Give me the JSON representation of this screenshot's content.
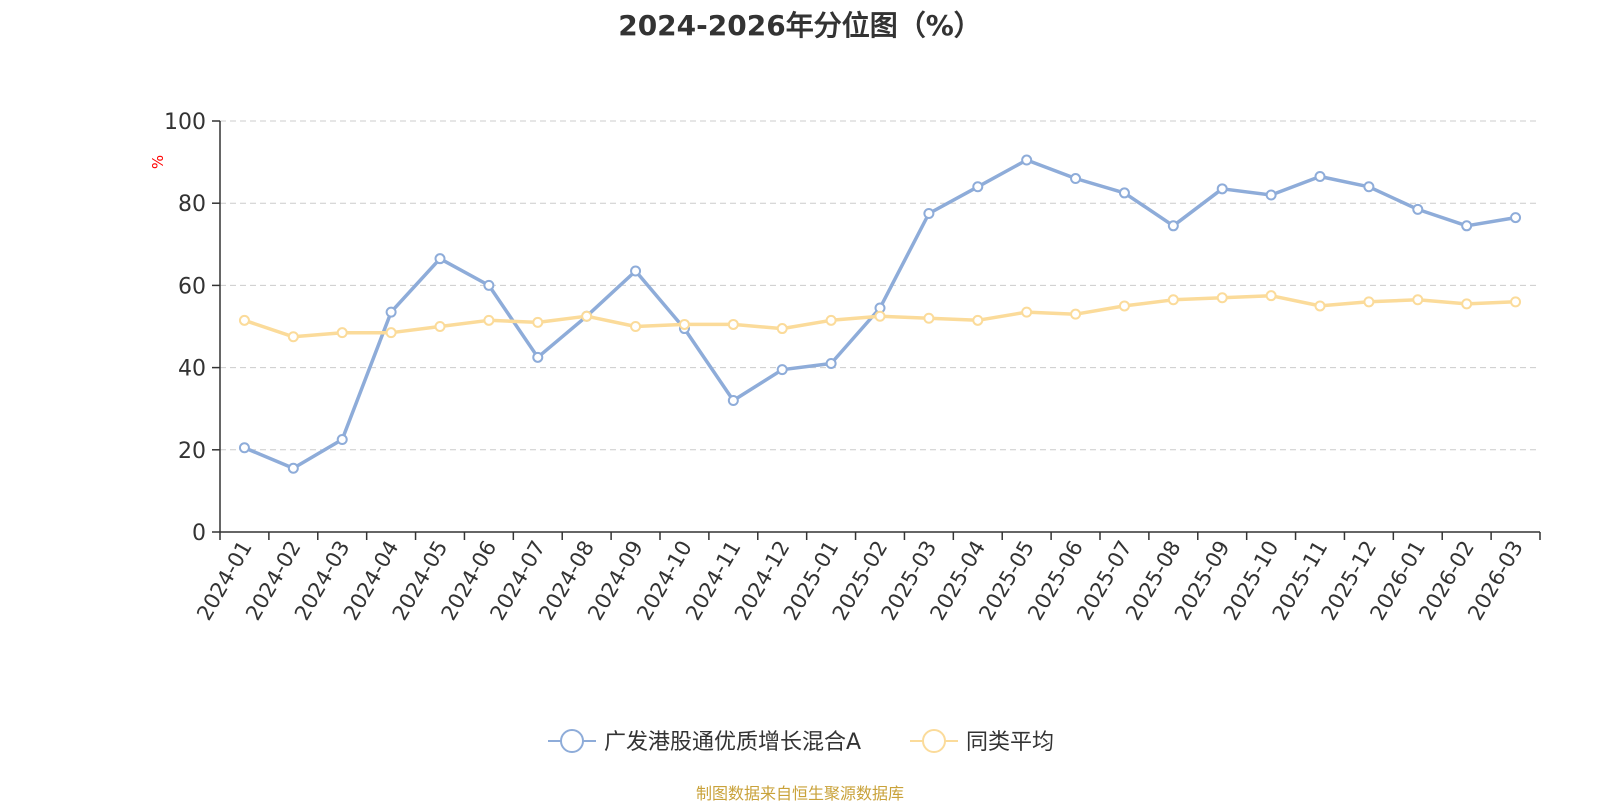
{
  "title": "2024-2026年分位图（%）",
  "source": "制图数据来自恒生聚源数据库",
  "y_unit": "%",
  "chart_data": {
    "type": "line",
    "title": "2024-2026年分位图（%）",
    "xlabel": "",
    "ylabel": "%",
    "ylim": [
      0,
      100
    ],
    "yticks": [
      0,
      20,
      40,
      60,
      80,
      100
    ],
    "grid": true,
    "legend_position": "bottom",
    "categories": [
      "2024-01",
      "2024-02",
      "2024-03",
      "2024-04",
      "2024-05",
      "2024-06",
      "2024-07",
      "2024-08",
      "2024-09",
      "2024-10",
      "2024-11",
      "2024-12",
      "2025-01",
      "2025-02",
      "2025-03",
      "2025-04",
      "2025-05",
      "2025-06",
      "2025-07",
      "2025-08",
      "2025-09",
      "2025-10",
      "2025-11",
      "2025-12",
      "2026-01",
      "2026-02",
      "2026-03"
    ],
    "series": [
      {
        "name": "广发港股通优质增长混合A",
        "color": "#8eacd9",
        "values": [
          20.5,
          15.5,
          22.5,
          53.5,
          66.5,
          60.0,
          42.5,
          52.5,
          63.5,
          49.5,
          32.0,
          39.5,
          41.0,
          54.5,
          77.5,
          84.0,
          90.5,
          86.0,
          82.5,
          74.5,
          83.5,
          82.0,
          86.5,
          84.0,
          78.5,
          74.5,
          76.5
        ]
      },
      {
        "name": "同类平均",
        "color": "#fbdb9a",
        "values": [
          51.5,
          47.5,
          48.5,
          48.5,
          50.0,
          51.5,
          51.0,
          52.5,
          50.0,
          50.5,
          50.5,
          49.5,
          51.5,
          52.5,
          52.0,
          51.5,
          53.5,
          53.0,
          55.0,
          56.5,
          57.0,
          57.5,
          55.0,
          56.0,
          56.5,
          55.5,
          56.0
        ]
      }
    ]
  }
}
